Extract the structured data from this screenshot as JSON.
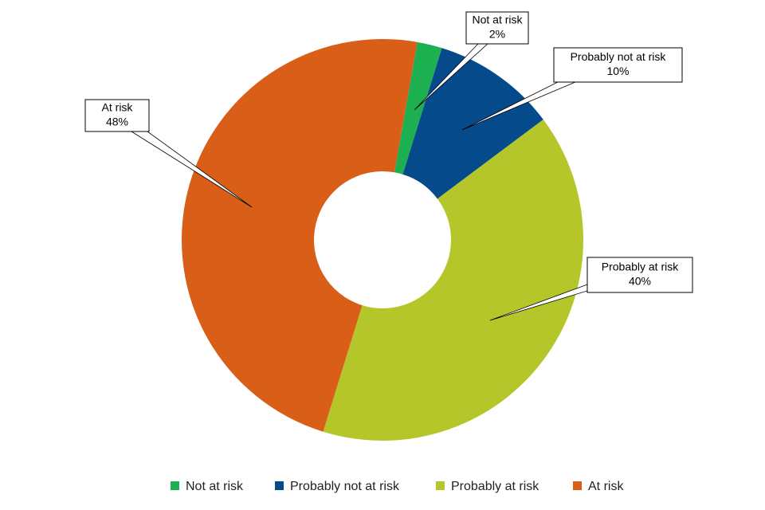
{
  "chart_data": {
    "type": "donut",
    "categories": [
      "Not at risk",
      "Probably not at risk",
      "Probably at risk",
      "At risk"
    ],
    "values": [
      2,
      10,
      40,
      48
    ],
    "value_labels": [
      "2%",
      "10%",
      "40%",
      "48%"
    ],
    "colors": [
      "#1db050",
      "#054b8c",
      "#b5c62a",
      "#d95e17"
    ],
    "legend": "bottom"
  }
}
